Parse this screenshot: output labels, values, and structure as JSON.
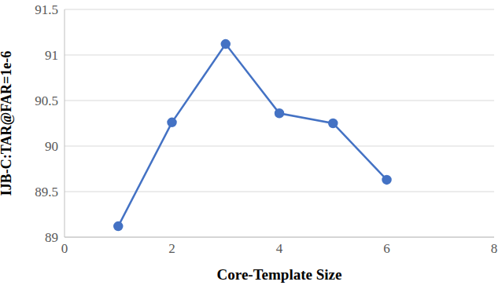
{
  "chart_data": {
    "type": "line",
    "x_label": "Core-Template Size",
    "y_label": "IJB-C:TAR@FAR=1e-6",
    "x": [
      1,
      2,
      3,
      4,
      5,
      6
    ],
    "values": [
      89.12,
      90.26,
      91.12,
      90.36,
      90.25,
      89.63
    ],
    "color": "#4472c4",
    "marker": "circle",
    "xlim": [
      0,
      8
    ],
    "xticks": [
      0,
      2,
      4,
      6,
      8
    ],
    "ylim": [
      89,
      91.5
    ],
    "yticks": [
      89,
      89.5,
      90,
      90.5,
      91,
      91.5
    ],
    "grid": true
  }
}
